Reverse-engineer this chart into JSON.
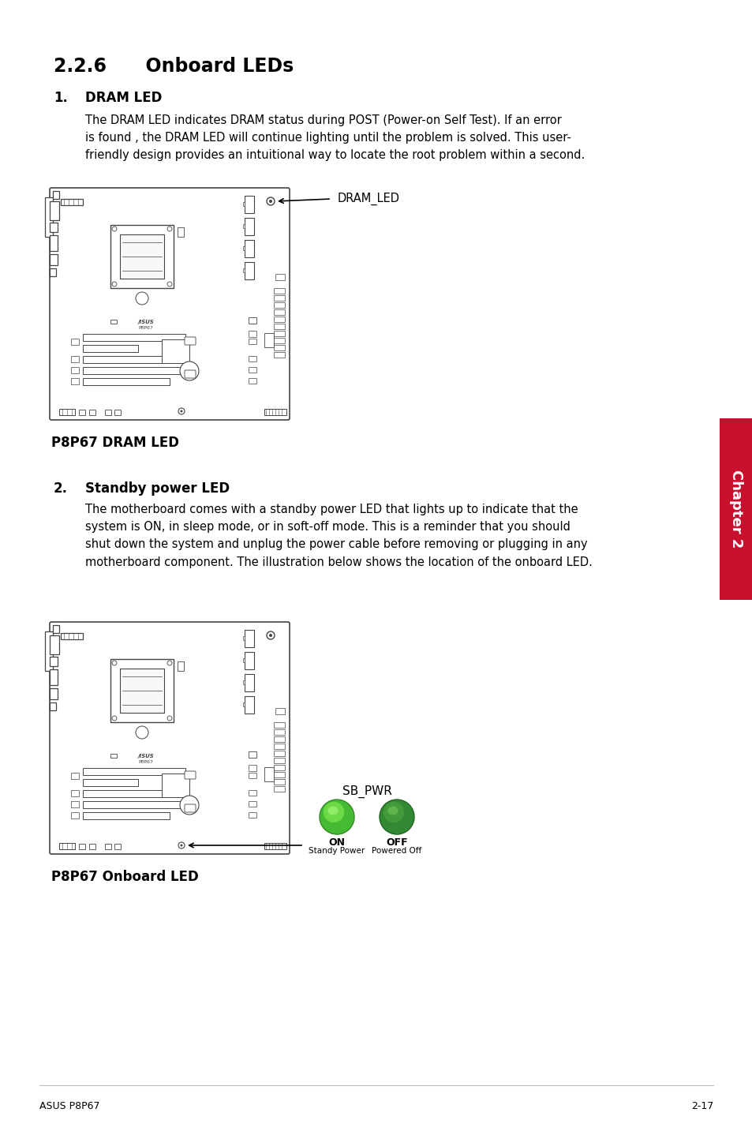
{
  "bg_color": "#ffffff",
  "title_section": "2.2.6      Onboard LEDs",
  "section1_num": "1.",
  "section1_title": "DRAM LED",
  "section1_body": "The DRAM LED indicates DRAM status during POST (Power-on Self Test). If an error\nis found , the DRAM LED will continue lighting until the problem is solved. This user-\nfriendly design provides an intuitional way to locate the root problem within a second.",
  "section1_caption": "P8P67 DRAM LED",
  "section2_num": "2.",
  "section2_title": "Standby power LED",
  "section2_body": "The motherboard comes with a standby power LED that lights up to indicate that the\nsystem is ON, in sleep mode, or in soft-off mode. This is a reminder that you should\nshut down the system and unplug the power cable before removing or plugging in any\nmotherboard component. The illustration below shows the location of the onboard LED.",
  "section2_caption": "P8P67 Onboard LED",
  "dram_led_label": "DRAM_LED",
  "sb_pwr_label": "SB_PWR",
  "on_label": "ON",
  "on_sublabel": "Standy Power",
  "off_label": "OFF",
  "off_sublabel": "Powered Off",
  "footer_left": "ASUS P8P67",
  "footer_right": "2-17",
  "chapter_label": "Chapter 2",
  "sidebar_color": "#c8102e",
  "text_color": "#000000",
  "line_color": "#bbbbbb",
  "board_line_color": "#444444",
  "on_circle_color": "#55cc44",
  "off_circle_color": "#44aa33"
}
